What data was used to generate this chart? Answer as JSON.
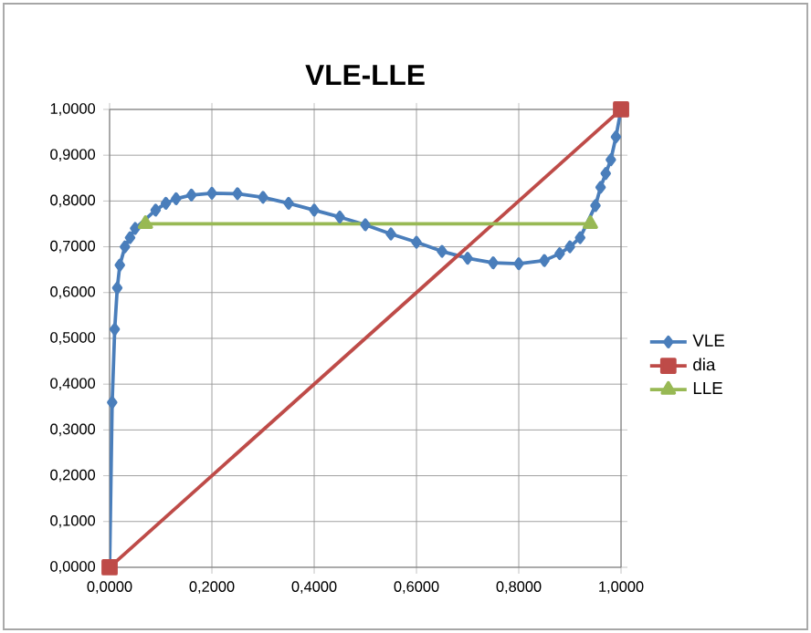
{
  "chart_data": {
    "type": "line",
    "title": "VLE-LLE",
    "xlim": [
      0,
      1
    ],
    "ylim": [
      0,
      1
    ],
    "xticks": [
      {
        "value": 0,
        "label": "0,0000"
      },
      {
        "value": 0.2,
        "label": "0,2000"
      },
      {
        "value": 0.4,
        "label": "0,4000"
      },
      {
        "value": 0.6,
        "label": "0,6000"
      },
      {
        "value": 0.8,
        "label": "0,8000"
      },
      {
        "value": 1,
        "label": "1,0000"
      }
    ],
    "yticks": [
      {
        "value": 0,
        "label": "0,0000"
      },
      {
        "value": 0.1,
        "label": "0,1000"
      },
      {
        "value": 0.2,
        "label": "0,2000"
      },
      {
        "value": 0.3,
        "label": "0,3000"
      },
      {
        "value": 0.4,
        "label": "0,4000"
      },
      {
        "value": 0.5,
        "label": "0,5000"
      },
      {
        "value": 0.6,
        "label": "0,6000"
      },
      {
        "value": 0.7,
        "label": "0,7000"
      },
      {
        "value": 0.8,
        "label": "0,8000"
      },
      {
        "value": 0.9,
        "label": "0,9000"
      },
      {
        "value": 1,
        "label": "1,0000"
      }
    ],
    "grid": true,
    "legend": "right",
    "series": [
      {
        "name": "VLE",
        "color": "#4a7ebb",
        "marker": "diamond",
        "x": [
          0,
          0.005,
          0.01,
          0.015,
          0.02,
          0.03,
          0.04,
          0.05,
          0.09,
          0.11,
          0.13,
          0.16,
          0.2,
          0.25,
          0.3,
          0.35,
          0.4,
          0.45,
          0.5,
          0.55,
          0.6,
          0.65,
          0.7,
          0.75,
          0.8,
          0.85,
          0.88,
          0.9,
          0.92,
          0.95,
          0.96,
          0.97,
          0.98,
          0.99,
          1.0
        ],
        "values": [
          0,
          0.36,
          0.52,
          0.61,
          0.66,
          0.7,
          0.72,
          0.74,
          0.78,
          0.795,
          0.805,
          0.813,
          0.817,
          0.816,
          0.808,
          0.795,
          0.78,
          0.765,
          0.748,
          0.728,
          0.71,
          0.69,
          0.675,
          0.665,
          0.663,
          0.67,
          0.685,
          0.7,
          0.72,
          0.79,
          0.83,
          0.86,
          0.89,
          0.94,
          1.0
        ]
      },
      {
        "name": "dia",
        "color": "#be4b48",
        "marker": "square",
        "x": [
          0,
          1
        ],
        "values": [
          0,
          1
        ]
      },
      {
        "name": "LLE",
        "color": "#98b954",
        "marker": "triangle",
        "x": [
          0.07,
          0.94
        ],
        "values": [
          0.75,
          0.75
        ]
      }
    ]
  }
}
